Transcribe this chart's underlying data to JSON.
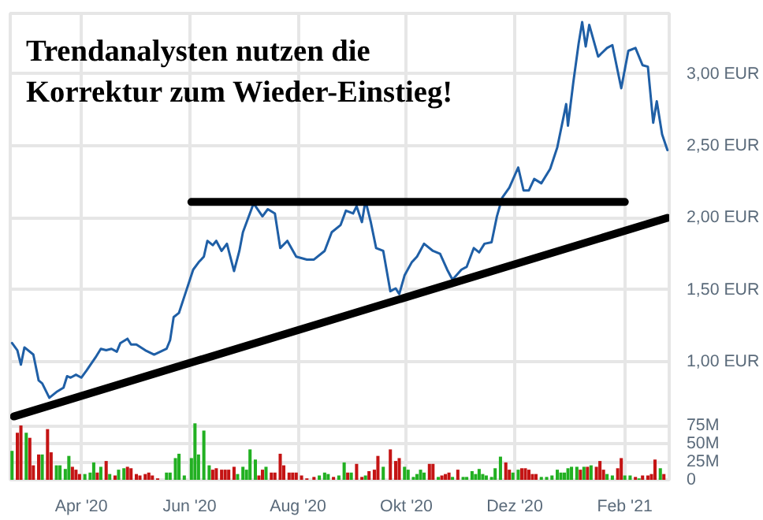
{
  "chart_data": [
    {
      "type": "line",
      "title": "Trendanalysten nutzen die\nKorrektur zum Wieder-Einstieg!",
      "xlim": [
        "2020-02-21",
        "2021-02-26"
      ],
      "xticks": [
        {
          "value": "2020-04-01",
          "label": "Apr '20"
        },
        {
          "value": "2020-06-01",
          "label": "Jun '20"
        },
        {
          "value": "2020-08-01",
          "label": "Aug '20"
        },
        {
          "value": "2020-10-01",
          "label": "Okt '20"
        },
        {
          "value": "2020-12-01",
          "label": "Dez '20"
        },
        {
          "value": "2021-02-01",
          "label": "Feb '21"
        }
      ],
      "ylim": [
        0.18,
        3.42
      ],
      "yticks": [
        {
          "value": 1,
          "label": "1,00 EUR"
        },
        {
          "value": 1.5,
          "label": "1,50 EUR"
        },
        {
          "value": 2,
          "label": "2,00 EUR"
        },
        {
          "value": 2.5,
          "label": "2,50 EUR"
        },
        {
          "value": 3,
          "label": "3,00 EUR"
        }
      ],
      "y2lim": [
        0,
        644
      ],
      "y2ticks": [
        0,
        {
          "value": 25,
          "label": "25M"
        },
        {
          "value": 50,
          "label": "50M"
        },
        {
          "value": 75,
          "label": "75M"
        }
      ],
      "grid": true,
      "series": [
        {
          "color": "#1f5fa6",
          "x": [
            "2020-02-22",
            "2020-02-25",
            "2020-02-27",
            "2020-02-29",
            "2020-03-05",
            "2020-03-08",
            "2020-03-10",
            "2020-03-14",
            "2020-03-18",
            "2020-03-22",
            "2020-03-24",
            "2020-03-26",
            "2020-03-29",
            "2020-04-01",
            "2020-04-04",
            "2020-04-09",
            "2020-04-12",
            "2020-04-15",
            "2020-04-18",
            "2020-04-21",
            "2020-04-23",
            "2020-04-27",
            "2020-04-29",
            "2020-05-02",
            "2020-05-07",
            "2020-05-12",
            "2020-05-19",
            "2020-05-21",
            "2020-05-23",
            "2020-05-26",
            "2020-05-30",
            "2020-06-03",
            "2020-06-06",
            "2020-06-09",
            "2020-06-11",
            "2020-06-14",
            "2020-06-16",
            "2020-06-19",
            "2020-06-22",
            "2020-06-26",
            "2020-06-29",
            "2020-07-01",
            "2020-07-07",
            "2020-07-12",
            "2020-07-15",
            "2020-07-19",
            "2020-07-22",
            "2020-07-26",
            "2020-07-31",
            "2020-08-06",
            "2020-08-10",
            "2020-08-16",
            "2020-08-20",
            "2020-08-25",
            "2020-08-28",
            "2020-09-01",
            "2020-09-03",
            "2020-09-06",
            "2020-09-08",
            "2020-09-11",
            "2020-09-14",
            "2020-09-18",
            "2020-09-22",
            "2020-09-25",
            "2020-09-27",
            "2020-09-30",
            "2020-10-04",
            "2020-10-07",
            "2020-10-11",
            "2020-10-16",
            "2020-10-20",
            "2020-10-24",
            "2020-10-27",
            "2020-11-01",
            "2020-11-04",
            "2020-11-08",
            "2020-11-11",
            "2020-11-14",
            "2020-11-18",
            "2020-11-21",
            "2020-11-24",
            "2020-11-28",
            "2020-12-03",
            "2020-12-06",
            "2020-12-09",
            "2020-12-12",
            "2020-12-16",
            "2020-12-21",
            "2020-12-25",
            "2020-12-30",
            "2020-12-31",
            "2021-01-03",
            "2021-01-06",
            "2021-01-08",
            "2021-01-10",
            "2021-01-12",
            "2021-01-17",
            "2021-01-22",
            "2021-01-25",
            "2021-01-30",
            "2021-02-03",
            "2021-02-07",
            "2021-02-11",
            "2021-02-14",
            "2021-02-17",
            "2021-02-19",
            "2021-02-22",
            "2021-02-25"
          ],
          "values": [
            1.13,
            1.08,
            0.98,
            1.1,
            1.05,
            0.87,
            0.85,
            0.75,
            0.79,
            0.82,
            0.9,
            0.89,
            0.91,
            0.89,
            0.94,
            1.03,
            1.09,
            1.08,
            1.09,
            1.07,
            1.13,
            1.16,
            1.12,
            1.12,
            1.08,
            1.05,
            1.09,
            1.15,
            1.31,
            1.34,
            1.49,
            1.64,
            1.69,
            1.73,
            1.84,
            1.81,
            1.84,
            1.77,
            1.82,
            1.63,
            1.77,
            1.9,
            2.1,
            2.01,
            2.06,
            2.03,
            1.79,
            1.84,
            1.73,
            1.71,
            1.71,
            1.77,
            1.9,
            1.95,
            2.05,
            2.03,
            2.08,
            1.97,
            2.12,
            1.97,
            1.79,
            1.77,
            1.49,
            1.51,
            1.47,
            1.6,
            1.69,
            1.73,
            1.82,
            1.77,
            1.75,
            1.64,
            1.57,
            1.64,
            1.66,
            1.79,
            1.76,
            1.82,
            1.83,
            2.01,
            2.14,
            2.21,
            2.35,
            2.19,
            2.19,
            2.27,
            2.24,
            2.34,
            2.49,
            2.79,
            2.64,
            2.94,
            3.21,
            3.36,
            3.19,
            3.34,
            3.12,
            3.18,
            3.2,
            2.9,
            3.16,
            3.18,
            3.06,
            3.05,
            2.66,
            2.81,
            2.58,
            2.47
          ]
        },
        {
          "color": "#000000",
          "x": [
            "2020-06-02",
            "2021-02-01"
          ],
          "values": [
            2.11,
            2.11
          ]
        },
        {
          "color": "#000000",
          "x": [
            "2020-02-23",
            "2021-02-25"
          ],
          "values": [
            0.62,
            2.0
          ]
        },
        {
          "type": "bar",
          "axis": "y2",
          "x": [
            "2020-02-22",
            "2020-02-25",
            "2020-02-27",
            "2020-03-01",
            "2020-03-03",
            "2020-03-05",
            "2020-03-08",
            "2020-03-10",
            "2020-03-13",
            "2020-03-15",
            "2020-03-18",
            "2020-03-20",
            "2020-03-23",
            "2020-03-25",
            "2020-03-27",
            "2020-03-29",
            "2020-03-31",
            "2020-04-03",
            "2020-04-06",
            "2020-04-08",
            "2020-04-10",
            "2020-04-12",
            "2020-04-15",
            "2020-04-17",
            "2020-04-20",
            "2020-04-22",
            "2020-04-25",
            "2020-04-27",
            "2020-04-29",
            "2020-05-02",
            "2020-05-04",
            "2020-05-07",
            "2020-05-09",
            "2020-05-11",
            "2020-05-14",
            "2020-05-19",
            "2020-05-21",
            "2020-05-24",
            "2020-05-26",
            "2020-05-29",
            "2020-06-02",
            "2020-06-04",
            "2020-06-06",
            "2020-06-09",
            "2020-06-12",
            "2020-06-14",
            "2020-06-16",
            "2020-06-19",
            "2020-06-21",
            "2020-06-23",
            "2020-06-26",
            "2020-06-28",
            "2020-07-01",
            "2020-07-03",
            "2020-07-05",
            "2020-07-08",
            "2020-07-10",
            "2020-07-12",
            "2020-07-14",
            "2020-07-17",
            "2020-07-19",
            "2020-07-22",
            "2020-07-24",
            "2020-07-27",
            "2020-07-29",
            "2020-07-31",
            "2020-08-03",
            "2020-08-06",
            "2020-08-10",
            "2020-08-13",
            "2020-08-16",
            "2020-08-18",
            "2020-08-21",
            "2020-08-24",
            "2020-08-27",
            "2020-08-29",
            "2020-08-31",
            "2020-09-03",
            "2020-09-06",
            "2020-09-08",
            "2020-09-10",
            "2020-09-13",
            "2020-09-15",
            "2020-09-18",
            "2020-09-22",
            "2020-09-25",
            "2020-09-27",
            "2020-09-30",
            "2020-10-02",
            "2020-10-05",
            "2020-10-07",
            "2020-10-09",
            "2020-10-11",
            "2020-10-14",
            "2020-10-16",
            "2020-10-19",
            "2020-10-21",
            "2020-10-23",
            "2020-10-25",
            "2020-10-27",
            "2020-10-30",
            "2020-11-02",
            "2020-11-04",
            "2020-11-07",
            "2020-11-09",
            "2020-11-11",
            "2020-11-13",
            "2020-11-15",
            "2020-11-18",
            "2020-11-20",
            "2020-11-23",
            "2020-11-26",
            "2020-11-28",
            "2020-11-30",
            "2020-12-03",
            "2020-12-05",
            "2020-12-07",
            "2020-12-09",
            "2020-12-11",
            "2020-12-13",
            "2020-12-16",
            "2020-12-19",
            "2020-12-22",
            "2020-12-25",
            "2020-12-27",
            "2020-12-29",
            "2020-12-31",
            "2021-01-02",
            "2021-01-05",
            "2021-01-07",
            "2021-01-09",
            "2021-01-11",
            "2021-01-13",
            "2021-01-16",
            "2021-01-18",
            "2021-01-20",
            "2021-01-22",
            "2021-01-25",
            "2021-01-28",
            "2021-01-30",
            "2021-02-01",
            "2021-02-04",
            "2021-02-07",
            "2021-02-09",
            "2021-02-11",
            "2021-02-14",
            "2021-02-16",
            "2021-02-18",
            "2021-02-21",
            "2021-02-23"
          ],
          "values": [
            40,
            65,
            75,
            65,
            58,
            20,
            35,
            35,
            70,
            38,
            20,
            20,
            15,
            33,
            18,
            14,
            8,
            8,
            10,
            24,
            10,
            18,
            26,
            8,
            6,
            14,
            16,
            18,
            16,
            8,
            6,
            8,
            10,
            6,
            2,
            10,
            10,
            30,
            36,
            6,
            30,
            78,
            35,
            68,
            20,
            14,
            16,
            14,
            14,
            14,
            18,
            8,
            18,
            14,
            42,
            28,
            6,
            14,
            18,
            10,
            10,
            36,
            20,
            10,
            10,
            10,
            6,
            2,
            4,
            6,
            10,
            8,
            4,
            6,
            24,
            10,
            10,
            22,
            4,
            6,
            12,
            14,
            33,
            18,
            42,
            26,
            30,
            18,
            14,
            4,
            8,
            14,
            10,
            22,
            22,
            4,
            6,
            8,
            10,
            4,
            14,
            4,
            4,
            12,
            8,
            15,
            8,
            6,
            4,
            16,
            32,
            24,
            14,
            10,
            14,
            16,
            16,
            14,
            8,
            8,
            4,
            4,
            6,
            14,
            10,
            10,
            16,
            18,
            18,
            14,
            18,
            18,
            20,
            18,
            26,
            14,
            8,
            6,
            16,
            30,
            6,
            6,
            4,
            2,
            6,
            6,
            8,
            28,
            16,
            8
          ],
          "colors": [
            "#22b022",
            "#c41414",
            "#c41414",
            "#22b022",
            "#c41414",
            "#c41414",
            "#c41414",
            "#22b022",
            "#c41414",
            "#c41414",
            "#22b022",
            "#22b022",
            "#22b022",
            "#22b022",
            "#c41414",
            "#c41414",
            "#c41414",
            "#22b022",
            "#22b022",
            "#22b022",
            "#c41414",
            "#22b022",
            "#c41414",
            "#22b022",
            "#c41414",
            "#22b022",
            "#22b022",
            "#c41414",
            "#c41414",
            "#c41414",
            "#c41414",
            "#c41414",
            "#c41414",
            "#c41414",
            "#c41414",
            "#22b022",
            "#22b022",
            "#22b022",
            "#22b022",
            "#22b022",
            "#22b022",
            "#22b022",
            "#22b022",
            "#22b022",
            "#22b022",
            "#c41414",
            "#c41414",
            "#c41414",
            "#c41414",
            "#c41414",
            "#c41414",
            "#22b022",
            "#22b022",
            "#22b022",
            "#22b022",
            "#22b022",
            "#c41414",
            "#c41414",
            "#22b022",
            "#c41414",
            "#c41414",
            "#c41414",
            "#c41414",
            "#c41414",
            "#c41414",
            "#c41414",
            "#c41414",
            "#c41414",
            "#c41414",
            "#22b022",
            "#22b022",
            "#22b022",
            "#c41414",
            "#22b022",
            "#22b022",
            "#c41414",
            "#22b022",
            "#c41414",
            "#c41414",
            "#22b022",
            "#c41414",
            "#c41414",
            "#c41414",
            "#22b022",
            "#c41414",
            "#c41414",
            "#c41414",
            "#22b022",
            "#22b022",
            "#22b022",
            "#22b022",
            "#22b022",
            "#22b022",
            "#c41414",
            "#c41414",
            "#22b022",
            "#c41414",
            "#c41414",
            "#c41414",
            "#22b022",
            "#c41414",
            "#22b022",
            "#22b022",
            "#22b022",
            "#22b022",
            "#22b022",
            "#22b022",
            "#22b022",
            "#22b022",
            "#22b022",
            "#22b022",
            "#c41414",
            "#c41414",
            "#22b022",
            "#22b022",
            "#c41414",
            "#c41414",
            "#c41414",
            "#c41414",
            "#c41414",
            "#22b022",
            "#22b022",
            "#22b022",
            "#22b022",
            "#22b022",
            "#22b022",
            "#22b022",
            "#22b022",
            "#22b022",
            "#c41414",
            "#22b022",
            "#c41414",
            "#22b022",
            "#c41414",
            "#c41414",
            "#c41414",
            "#22b022",
            "#22b022",
            "#c41414",
            "#c41414",
            "#22b022",
            "#22b022",
            "#c41414",
            "#22b022",
            "#c41414",
            "#c41414",
            "#c41414",
            "#c41414",
            "#22b022",
            "#c41414"
          ]
        }
      ]
    }
  ]
}
